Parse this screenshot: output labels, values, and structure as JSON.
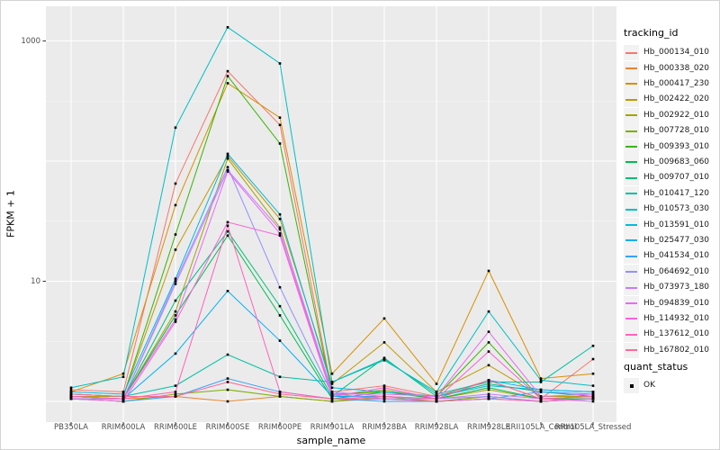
{
  "colors": {
    "figure_bg": "#ffffff",
    "panel_bg": "#ebebeb",
    "grid": "#ffffff",
    "tick": "#333333",
    "axis_text": "#4d4d4d",
    "point": "#000000",
    "legend_key_bg": "#f2f2f2"
  },
  "chart_data": {
    "type": "line",
    "title": "",
    "xlabel": "sample_name",
    "ylabel": "FPKM + 1",
    "y_scale": "log10",
    "ylim": [
      0.85,
      1500
    ],
    "grid": "on",
    "legend_position": "right",
    "legend_title": "tracking_id",
    "legend2_title": "quant_status",
    "quant_status_label": "OK",
    "x_categories": [
      "PB350LA",
      "RRIM600LA",
      "RRIM600LE",
      "RRIM600SE",
      "RRIM600PE",
      "RRIM901LA",
      "RRIM928BA",
      "RRIM928LA",
      "RRIM928LE",
      "RRII105LA_Control",
      "RRII105LA_Stressed"
    ],
    "y_ticks": [
      {
        "value": 10,
        "label": "10"
      },
      {
        "value": 1000,
        "label": "1000"
      }
    ],
    "y_gridlines": [
      1,
      10,
      100,
      1000
    ],
    "y_minor_gridlines": [
      3.1623,
      31.623,
      316.23
    ],
    "series": [
      {
        "name": "Hb_000134_010",
        "color": "#F8766D",
        "values": [
          1.25,
          1.2,
          65,
          560,
          200,
          1.2,
          1.35,
          1.1,
          1.5,
          1.05,
          2.25
        ]
      },
      {
        "name": "Hb_000338_020",
        "color": "#EA8331",
        "values": [
          1.1,
          1.05,
          1.1,
          1.0,
          1.1,
          1.0,
          1.05,
          1.0,
          1.05,
          1.0,
          1.05
        ]
      },
      {
        "name": "Hb_000417_230",
        "color": "#D89000",
        "values": [
          1.2,
          1.7,
          43,
          445,
          230,
          1.7,
          4.9,
          1.4,
          12.2,
          1.55,
          1.7
        ]
      },
      {
        "name": "Hb_002422_020",
        "color": "#C09B00",
        "values": [
          1.1,
          1.1,
          18.3,
          110,
          33,
          1.4,
          3.1,
          1.2,
          2.0,
          1.1,
          1.1
        ]
      },
      {
        "name": "Hb_002922_010",
        "color": "#A3A500",
        "values": [
          1.05,
          1.05,
          5.6,
          105,
          28,
          1.1,
          1.25,
          1.05,
          1.25,
          1.05,
          1.05
        ]
      },
      {
        "name": "Hb_007728_010",
        "color": "#7CAE00",
        "values": [
          1.05,
          1.0,
          1.15,
          1.25,
          1.1,
          1.0,
          1.1,
          1.0,
          1.1,
          1.0,
          1.05
        ]
      },
      {
        "name": "Hb_009393_010",
        "color": "#39B600",
        "values": [
          1.15,
          1.1,
          24.5,
          510,
          140,
          1.15,
          1.2,
          1.1,
          3.1,
          1.05,
          1.1
        ]
      },
      {
        "name": "Hb_009683_060",
        "color": "#00BB4E",
        "values": [
          1.05,
          1.05,
          5.2,
          24,
          5.2,
          1.05,
          1.2,
          1.05,
          1.3,
          1.05,
          1.05
        ]
      },
      {
        "name": "Hb_009707_010",
        "color": "#00BF7D",
        "values": [
          1.1,
          1.05,
          6.9,
          26,
          6.2,
          1.1,
          2.3,
          1.1,
          1.4,
          1.2,
          1.1
        ]
      },
      {
        "name": "Hb_010417_120",
        "color": "#00C1A3",
        "values": [
          1.15,
          1.1,
          1.35,
          2.45,
          1.6,
          1.45,
          2.25,
          1.15,
          1.45,
          1.45,
          2.9
        ]
      },
      {
        "name": "Hb_010573_030",
        "color": "#00BFC4",
        "values": [
          1.3,
          1.6,
          190,
          1300,
          650,
          1.45,
          2.2,
          1.2,
          5.6,
          1.5,
          1.35
        ]
      },
      {
        "name": "Hb_013591_010",
        "color": "#00BAE0",
        "values": [
          1.2,
          1.15,
          10.5,
          115,
          36,
          1.3,
          1.2,
          1.1,
          1.35,
          1.25,
          1.2
        ]
      },
      {
        "name": "Hb_025477_030",
        "color": "#00B0F6",
        "values": [
          1.1,
          1.05,
          2.5,
          8.3,
          3.2,
          1.1,
          1.1,
          1.05,
          1.5,
          1.25,
          1.2
        ]
      },
      {
        "name": "Hb_041534_010",
        "color": "#35A2FF",
        "values": [
          1.05,
          1.0,
          1.1,
          1.55,
          1.2,
          1.05,
          1.0,
          1.0,
          1.05,
          1.2,
          1.15
        ]
      },
      {
        "name": "Hb_064692_010",
        "color": "#9590FF",
        "values": [
          1.1,
          1.05,
          10.0,
          89,
          8.9,
          1.15,
          1.05,
          1.05,
          1.1,
          1.0,
          1.05
        ]
      },
      {
        "name": "Hb_073973_180",
        "color": "#C77CFF",
        "values": [
          1.05,
          1.05,
          9.5,
          84,
          27,
          1.2,
          1.1,
          1.05,
          1.15,
          1.05,
          1.0
        ]
      },
      {
        "name": "Hb_094839_010",
        "color": "#E76BF3",
        "values": [
          1.1,
          1.05,
          4.8,
          82,
          25,
          1.15,
          1.15,
          1.1,
          3.8,
          1.1,
          1.15
        ]
      },
      {
        "name": "Hb_114932_010",
        "color": "#FA62DB",
        "values": [
          1.05,
          1.0,
          4.6,
          31,
          24,
          1.1,
          1.3,
          1.05,
          2.6,
          1.05,
          1.1
        ]
      },
      {
        "name": "Hb_137612_010",
        "color": "#FF62BC",
        "values": [
          1.1,
          1.05,
          1.2,
          29,
          1.2,
          1.05,
          1.05,
          1.0,
          1.05,
          1.0,
          1.05
        ]
      },
      {
        "name": "Hb_167802_010",
        "color": "#FF6A98",
        "values": [
          1.15,
          1.1,
          1.1,
          1.45,
          1.15,
          1.05,
          1.1,
          1.05,
          1.5,
          1.05,
          1.1
        ]
      }
    ]
  }
}
